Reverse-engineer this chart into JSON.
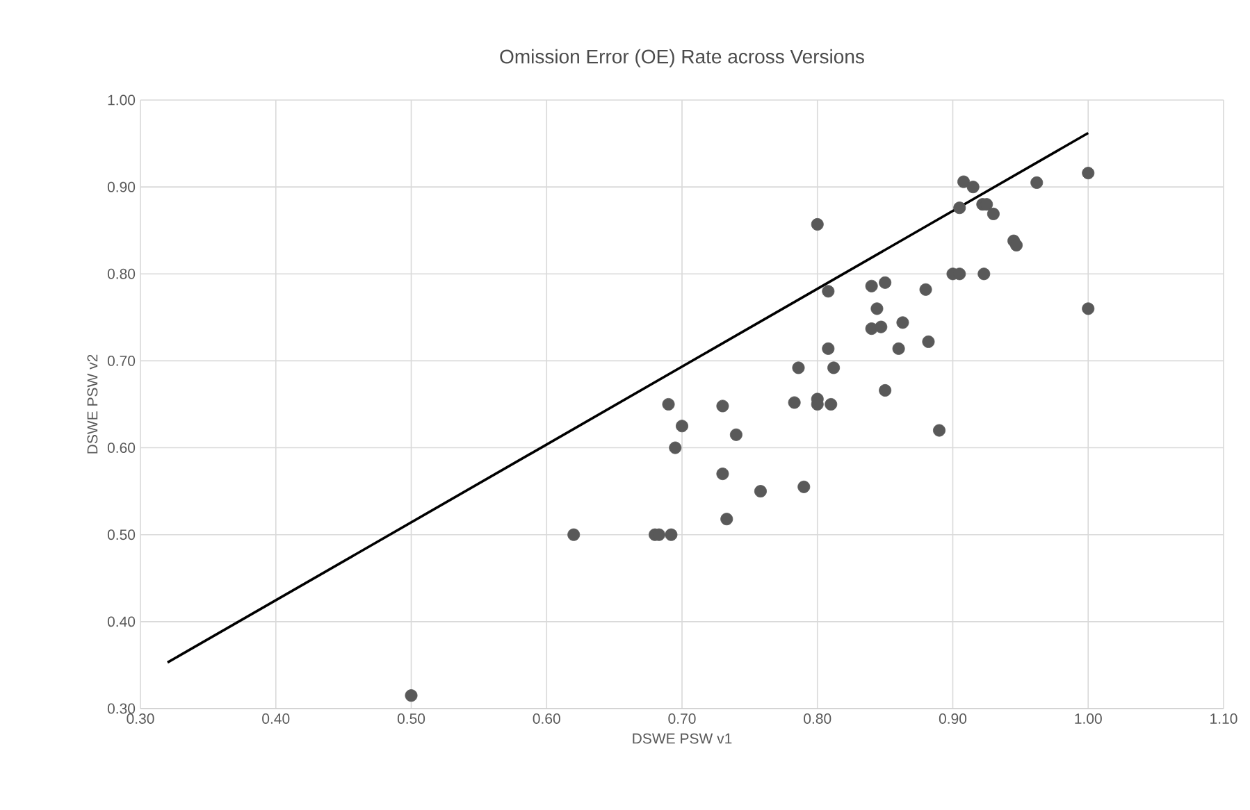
{
  "chart_data": {
    "type": "scatter",
    "title": "Omission Error (OE) Rate across Versions",
    "xlabel": "DSWE PSW v1",
    "ylabel": "DSWE PSW v2",
    "xlim": [
      0.3,
      1.1
    ],
    "ylim": [
      0.3,
      1.0
    ],
    "xticks": [
      {
        "value": 0.3,
        "label": "0.30"
      },
      {
        "value": 0.4,
        "label": "0.40"
      },
      {
        "value": 0.5,
        "label": "0.50"
      },
      {
        "value": 0.6,
        "label": "0.60"
      },
      {
        "value": 0.7,
        "label": "0.70"
      },
      {
        "value": 0.8,
        "label": "0.80"
      },
      {
        "value": 0.9,
        "label": "0.90"
      },
      {
        "value": 1.0,
        "label": "1.00"
      },
      {
        "value": 1.1,
        "label": "1.10"
      }
    ],
    "yticks": [
      {
        "value": 0.3,
        "label": "0.30"
      },
      {
        "value": 0.4,
        "label": "0.40"
      },
      {
        "value": 0.5,
        "label": "0.50"
      },
      {
        "value": 0.6,
        "label": "0.60"
      },
      {
        "value": 0.7,
        "label": "0.70"
      },
      {
        "value": 0.8,
        "label": "0.80"
      },
      {
        "value": 0.9,
        "label": "0.90"
      },
      {
        "value": 1.0,
        "label": "1.00"
      }
    ],
    "grid": true,
    "marker": "circle",
    "series": [
      {
        "color": "#595959",
        "x": [
          0.5,
          0.62,
          0.68,
          0.683,
          0.692,
          0.69,
          0.7,
          0.695,
          0.73,
          0.73,
          0.733,
          0.74,
          0.758,
          0.783,
          0.786,
          0.79,
          0.8,
          0.8,
          0.8,
          0.808,
          0.808,
          0.81,
          0.812,
          0.84,
          0.84,
          0.844,
          0.847,
          0.85,
          0.85,
          0.86,
          0.863,
          0.88,
          0.882,
          0.89,
          0.9,
          0.905,
          0.905,
          0.908,
          0.915,
          0.922,
          0.925,
          0.93,
          0.923,
          0.945,
          0.947,
          0.962,
          1.0,
          1.0
        ],
        "values": [
          0.315,
          0.5,
          0.5,
          0.5,
          0.5,
          0.65,
          0.625,
          0.6,
          0.648,
          0.57,
          0.518,
          0.615,
          0.55,
          0.652,
          0.692,
          0.555,
          0.857,
          0.65,
          0.656,
          0.78,
          0.714,
          0.65,
          0.692,
          0.786,
          0.737,
          0.76,
          0.739,
          0.79,
          0.666,
          0.714,
          0.744,
          0.782,
          0.722,
          0.62,
          0.8,
          0.8,
          0.876,
          0.906,
          0.9,
          0.88,
          0.88,
          0.869,
          0.8,
          0.838,
          0.833,
          0.905,
          0.916,
          0.76
        ]
      },
      {
        "type": "line",
        "color": "#000000",
        "marker": "none",
        "x": [
          0.32,
          1.0
        ],
        "values": [
          0.353,
          0.962
        ]
      }
    ]
  }
}
